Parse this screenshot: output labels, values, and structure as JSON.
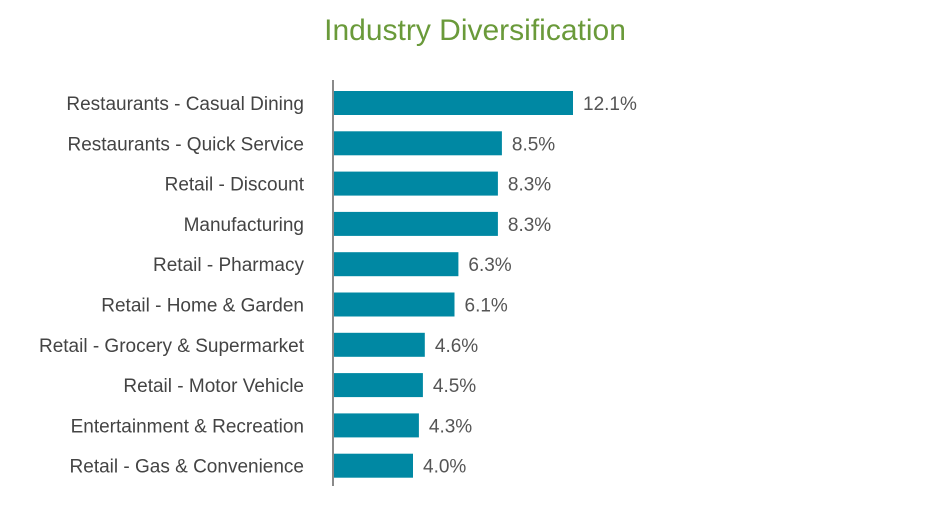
{
  "chart_data": {
    "type": "bar",
    "orientation": "horizontal",
    "title": "Industry Diversification",
    "categories": [
      "Restaurants - Casual Dining",
      "Restaurants - Quick Service",
      "Retail - Discount",
      "Manufacturing",
      "Retail - Pharmacy",
      "Retail - Home & Garden",
      "Retail - Grocery & Supermarket",
      "Retail - Motor Vehicle",
      "Entertainment & Recreation",
      "Retail - Gas & Convenience"
    ],
    "values": [
      12.1,
      8.5,
      8.3,
      8.3,
      6.3,
      6.1,
      4.6,
      4.5,
      4.3,
      4.0
    ],
    "value_labels": [
      "12.1%",
      "8.5%",
      "8.3%",
      "8.3%",
      "6.3%",
      "6.1%",
      "4.6%",
      "4.5%",
      "4.3%",
      "4.0%"
    ],
    "xlabel": "",
    "ylabel": "",
    "grid": false,
    "legend": "none",
    "colors": {
      "bar": "#0088a3",
      "title": "#6a9a3a",
      "axis": "#8a8a8a",
      "label": "#444444",
      "value_label": "#555555"
    }
  }
}
